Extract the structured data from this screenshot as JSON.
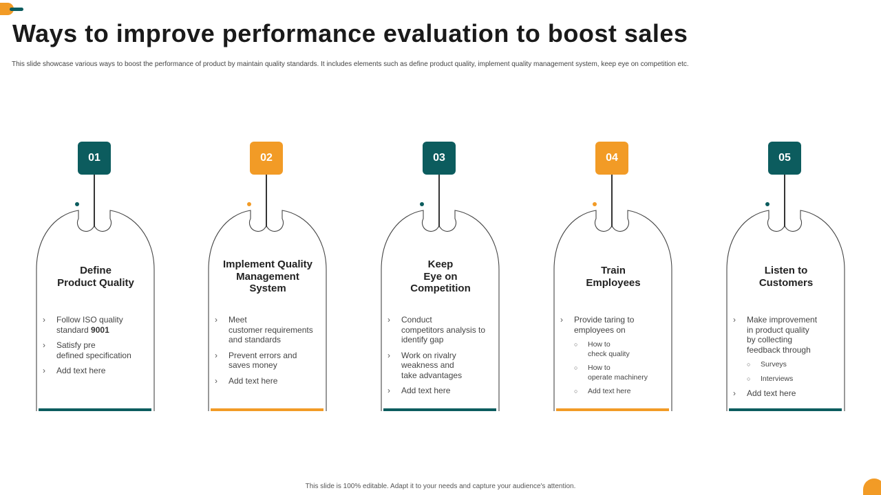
{
  "header": {
    "title": "Ways to improve performance evaluation to boost sales",
    "subtitle": "This slide showcase various ways to boost the performance of product by maintain quality standards. It includes elements such as define product quality,  implement quality management  system, keep eye on competition etc."
  },
  "footer": {
    "text": "This slide is 100% editable. Adapt it to your needs and capture your audience's attention."
  },
  "colors": {
    "teal": "#0c5c5e",
    "orange": "#f29b26"
  },
  "cards": [
    {
      "number": "01",
      "color": "teal",
      "heading_lines": [
        "Define",
        "Product Quality"
      ],
      "items": [
        {
          "marker": "›",
          "lines": [
            "Follow ISO quality"
          ],
          "text_pre": "standard ",
          "text_bold": "9001"
        },
        {
          "marker": "›",
          "lines": [
            "Satisfy pre",
            "defined specification"
          ]
        },
        {
          "marker": "›",
          "lines": [
            "Add text here"
          ]
        }
      ]
    },
    {
      "number": "02",
      "color": "orange",
      "heading_lines": [
        "Implement Quality",
        "Management",
        "System"
      ],
      "items": [
        {
          "marker": "›",
          "lines": [
            "Meet",
            "customer requirements",
            "and standards"
          ]
        },
        {
          "marker": "›",
          "lines": [
            "Prevent errors and",
            "saves money"
          ]
        },
        {
          "marker": "›",
          "lines": [
            "Add text here"
          ]
        }
      ]
    },
    {
      "number": "03",
      "color": "teal",
      "heading_lines": [
        "Keep",
        "Eye on",
        "Competition"
      ],
      "items": [
        {
          "marker": "›",
          "lines": [
            "Conduct",
            "competitors analysis to",
            "identify gap"
          ]
        },
        {
          "marker": "›",
          "lines": [
            "Work on rivalry",
            "weakness and",
            "take advantages"
          ]
        },
        {
          "marker": "›",
          "lines": [
            "Add text here"
          ]
        }
      ]
    },
    {
      "number": "04",
      "color": "orange",
      "heading_lines": [
        "Train",
        "Employees"
      ],
      "items": [
        {
          "marker": "›",
          "lines": [
            "Provide taring to",
            "employees on"
          ]
        },
        {
          "marker": "○",
          "sub": true,
          "lines": [
            "How to",
            "check quality"
          ]
        },
        {
          "marker": "○",
          "sub": true,
          "lines": [
            "How to",
            "operate machinery"
          ]
        },
        {
          "marker": "○",
          "sub": true,
          "lines": [
            "Add text here"
          ]
        }
      ]
    },
    {
      "number": "05",
      "color": "teal",
      "heading_lines": [
        "Listen to",
        "Customers"
      ],
      "items": [
        {
          "marker": "›",
          "lines": [
            "Make improvement",
            "in product quality",
            "by collecting",
            "feedback through"
          ]
        },
        {
          "marker": "○",
          "sub": true,
          "lines": [
            "Surveys"
          ]
        },
        {
          "marker": "○",
          "sub": true,
          "lines": [
            "Interviews"
          ]
        },
        {
          "marker": "›",
          "lines": [
            "Add text here"
          ]
        }
      ]
    }
  ]
}
